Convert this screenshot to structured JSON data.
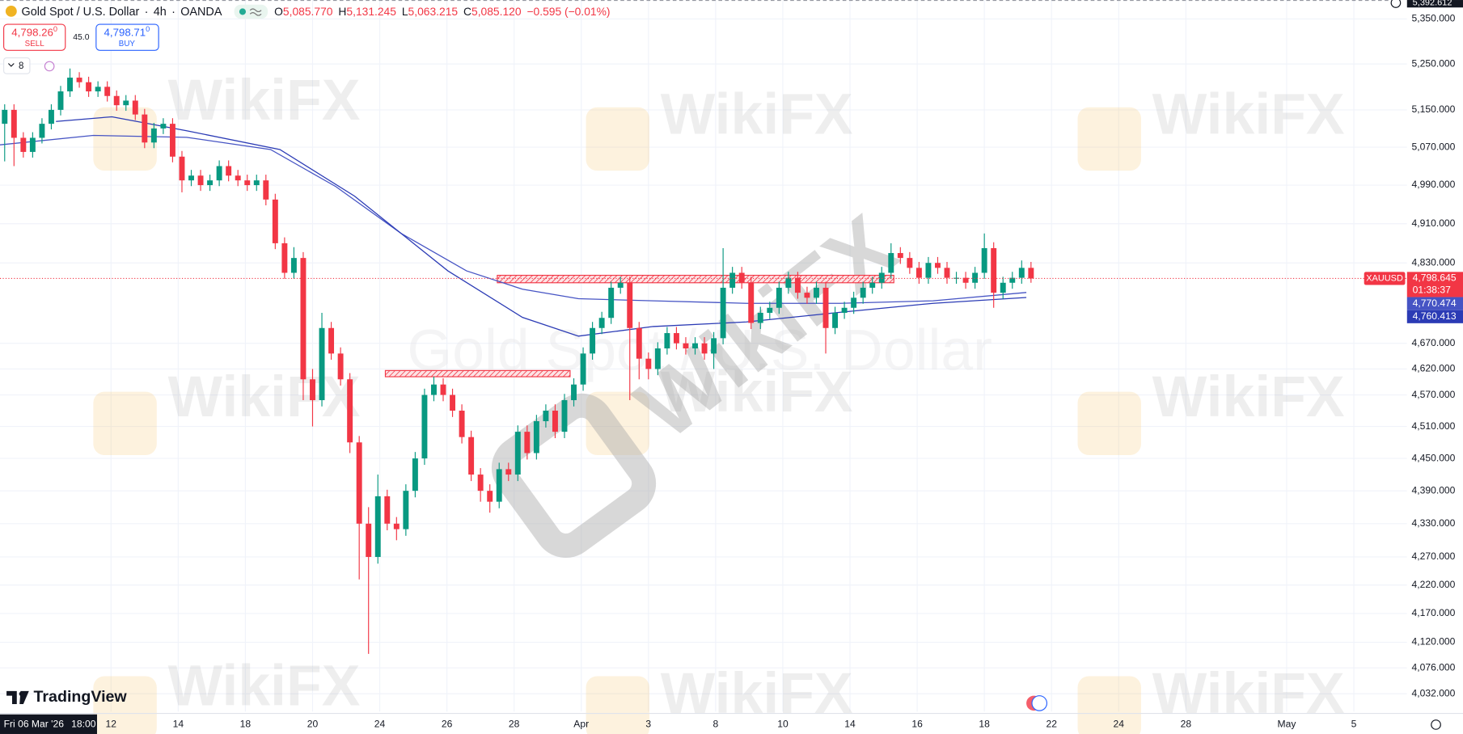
{
  "header": {
    "symbol": "Gold Spot / U.S. Dollar",
    "separator": "·",
    "interval": "4h",
    "exchange": "OANDA",
    "ohlc": [
      {
        "label": "O",
        "value": "5,085.770"
      },
      {
        "label": "H",
        "value": "5,131.245"
      },
      {
        "label": "L",
        "value": "5,063.215"
      },
      {
        "label": "C",
        "value": "5,085.120"
      }
    ],
    "change": "−0.595 (−0.01%)"
  },
  "trade": {
    "sell_price": "4,798.26",
    "sell_price_sup": "0",
    "sell": "SELL",
    "spread": "45.0",
    "buy_price": "4,798.71",
    "buy_price_sup": "0",
    "buy": "BUY"
  },
  "indicators_count": "8",
  "logo": "TradingView",
  "watermark": "WikiFX",
  "crosshair": {
    "date": "Fri 06 Mar '26",
    "time": "18:00",
    "top_price": "5,392.612"
  },
  "chart_data": {
    "type": "candlestick",
    "log_scale": true,
    "grid": true,
    "symbol_label": "XAUUSD",
    "last_value_label": "4,798.645",
    "countdown": "01:38:37",
    "up_color": "#089981",
    "down_color": "#f23645",
    "xlim": [
      -0.5,
      150.3
    ],
    "ylim": [
      4002,
      5392.612
    ],
    "xticks": [
      {
        "value": 11.4,
        "label": "12"
      },
      {
        "value": 18.6,
        "label": "14"
      },
      {
        "value": 25.8,
        "label": "18"
      },
      {
        "value": 33,
        "label": "20"
      },
      {
        "value": 40.2,
        "label": "24"
      },
      {
        "value": 47.4,
        "label": "26"
      },
      {
        "value": 54.6,
        "label": "28"
      },
      {
        "value": 61.8,
        "label": "Apr"
      },
      {
        "value": 69,
        "label": "3"
      },
      {
        "value": 76.2,
        "label": "8"
      },
      {
        "value": 83.4,
        "label": "10"
      },
      {
        "value": 90.6,
        "label": "14"
      },
      {
        "value": 97.8,
        "label": "16"
      },
      {
        "value": 105,
        "label": "18"
      },
      {
        "value": 112.2,
        "label": "22"
      },
      {
        "value": 119.4,
        "label": "24"
      },
      {
        "value": 126.6,
        "label": "28"
      },
      {
        "value": 137.4,
        "label": "May"
      },
      {
        "value": 144.6,
        "label": "5"
      }
    ],
    "yticks": [
      {
        "value": 5350,
        "label": "5,350.000"
      },
      {
        "value": 5250,
        "label": "5,250.000"
      },
      {
        "value": 5150,
        "label": "5,150.000"
      },
      {
        "value": 5070,
        "label": "5,070.000"
      },
      {
        "value": 4990,
        "label": "4,990.000"
      },
      {
        "value": 4910,
        "label": "4,910.000"
      },
      {
        "value": 4830,
        "label": "4,830.000"
      },
      {
        "value": 4670,
        "label": "4,670.000"
      },
      {
        "value": 4620,
        "label": "4,620.000"
      },
      {
        "value": 4570,
        "label": "4,570.000"
      },
      {
        "value": 4510,
        "label": "4,510.000"
      },
      {
        "value": 4450,
        "label": "4,450.000"
      },
      {
        "value": 4390,
        "label": "4,390.000"
      },
      {
        "value": 4330,
        "label": "4,330.000"
      },
      {
        "value": 4270,
        "label": "4,270.000"
      },
      {
        "value": 4220,
        "label": "4,220.000"
      },
      {
        "value": 4170,
        "label": "4,170.000"
      },
      {
        "value": 4120,
        "label": "4,120.000"
      },
      {
        "value": 4076,
        "label": "4,076.000"
      },
      {
        "value": 4032,
        "label": "4,032.000"
      }
    ],
    "open": [
      5120,
      5150,
      5090,
      5060,
      5090,
      5120,
      5150,
      5190,
      5220,
      5210,
      5190,
      5200,
      5180,
      5160,
      5170,
      5140,
      5080,
      5110,
      5120,
      5050,
      5000,
      5010,
      4990,
      5000,
      5030,
      5010,
      5000,
      4990,
      5000,
      4960,
      4870,
      4810,
      4840,
      4600,
      4560,
      4700,
      4650,
      4600,
      4480,
      4330,
      4270,
      4380,
      4330,
      4320,
      4390,
      4450,
      4570,
      4590,
      4570,
      4540,
      4490,
      4420,
      4390,
      4370,
      4430,
      4420,
      4500,
      4460,
      4520,
      4540,
      4500,
      4560,
      4590,
      4650,
      4700,
      4720,
      4780,
      4790,
      4700,
      4640,
      4620,
      4660,
      4690,
      4670,
      4660,
      4670,
      4650,
      4680,
      4780,
      4810,
      4790,
      4710,
      4730,
      4740,
      4780,
      4800,
      4770,
      4760,
      4780,
      4700,
      4730,
      4740,
      4760,
      4780,
      4790,
      4810,
      4850,
      4840,
      4820,
      4800,
      4830,
      4820,
      4800,
      4800,
      4790,
      4810,
      4860,
      4770,
      4790,
      4800,
      4820
    ],
    "high": [
      5162,
      5162,
      5102,
      5102,
      5132,
      5162,
      5202,
      5240,
      5232,
      5222,
      5212,
      5212,
      5192,
      5182,
      5182,
      5152,
      5122,
      5132,
      5132,
      5062,
      5022,
      5022,
      5012,
      5042,
      5042,
      5022,
      5012,
      5012,
      5012,
      4972,
      4882,
      4862,
      4852,
      4620,
      4730,
      4712,
      4662,
      4612,
      4492,
      4360,
      4420,
      4392,
      4342,
      4402,
      4462,
      4582,
      4605,
      4602,
      4582,
      4552,
      4502,
      4432,
      4402,
      4442,
      4442,
      4512,
      4512,
      4532,
      4552,
      4552,
      4572,
      4602,
      4662,
      4712,
      4732,
      4792,
      4802,
      4802,
      4712,
      4652,
      4672,
      4702,
      4702,
      4682,
      4682,
      4682,
      4692,
      4860,
      4822,
      4822,
      4802,
      4742,
      4752,
      4792,
      4812,
      4812,
      4782,
      4792,
      4792,
      4742,
      4752,
      4772,
      4792,
      4802,
      4822,
      4870,
      4862,
      4852,
      4832,
      4842,
      4842,
      4832,
      4812,
      4812,
      4822,
      4890,
      4872,
      4802,
      4812,
      4835,
      4832
    ],
    "low": [
      5040,
      5030,
      5048,
      5048,
      5078,
      5108,
      5138,
      5178,
      5198,
      5178,
      5178,
      5168,
      5148,
      5148,
      5128,
      5068,
      5068,
      5098,
      5038,
      4975,
      4988,
      4978,
      4978,
      4988,
      4998,
      4988,
      4978,
      4978,
      4948,
      4858,
      4798,
      4798,
      4560,
      4510,
      4548,
      4638,
      4588,
      4460,
      4230,
      4100,
      4258,
      4318,
      4300,
      4308,
      4378,
      4438,
      4558,
      4558,
      4528,
      4478,
      4408,
      4370,
      4350,
      4358,
      4408,
      4408,
      4448,
      4448,
      4508,
      4488,
      4488,
      4548,
      4578,
      4638,
      4688,
      4708,
      4768,
      4560,
      4600,
      4600,
      4608,
      4648,
      4658,
      4648,
      4648,
      4638,
      4620,
      4668,
      4768,
      4778,
      4698,
      4698,
      4718,
      4728,
      4768,
      4758,
      4748,
      4748,
      4650,
      4688,
      4718,
      4728,
      4748,
      4768,
      4778,
      4798,
      4828,
      4808,
      4788,
      4788,
      4808,
      4788,
      4788,
      4778,
      4778,
      4798,
      4740,
      4758,
      4778,
      4788,
      4790
    ],
    "close": [
      5150,
      5090,
      5060,
      5090,
      5120,
      5150,
      5190,
      5220,
      5210,
      5190,
      5200,
      5180,
      5160,
      5170,
      5140,
      5080,
      5110,
      5120,
      5050,
      5000,
      5010,
      4990,
      5000,
      5030,
      5010,
      5000,
      4990,
      5000,
      4960,
      4870,
      4810,
      4840,
      4600,
      4560,
      4700,
      4650,
      4600,
      4480,
      4330,
      4270,
      4380,
      4330,
      4320,
      4390,
      4450,
      4570,
      4590,
      4570,
      4540,
      4490,
      4420,
      4390,
      4370,
      4430,
      4420,
      4500,
      4460,
      4520,
      4540,
      4500,
      4560,
      4590,
      4650,
      4700,
      4720,
      4780,
      4790,
      4700,
      4640,
      4620,
      4660,
      4690,
      4670,
      4660,
      4670,
      4650,
      4680,
      4780,
      4810,
      4790,
      4710,
      4730,
      4740,
      4780,
      4800,
      4770,
      4760,
      4780,
      4700,
      4730,
      4740,
      4760,
      4780,
      4790,
      4810,
      4850,
      4840,
      4820,
      4800,
      4830,
      4820,
      4800,
      4800,
      4790,
      4810,
      4860,
      4770,
      4790,
      4800,
      4820,
      4798.645
    ],
    "series": [
      {
        "color": "#4654c4",
        "end_label": "4,770.474",
        "x": [
          -0.5,
          9.5,
          19.5,
          28.5,
          35.5,
          42.5,
          49.5,
          55.5,
          61.5,
          69.5,
          79.5,
          89.5,
          99.5,
          109.5
        ],
        "values": [
          5075,
          5095,
          5091,
          5065,
          4987,
          4890,
          4814,
          4777,
          4758,
          4754,
          4749,
          4749,
          4754,
          4770.474
        ]
      },
      {
        "color": "#2b3bb5",
        "end_label": "4,760.413",
        "x": [
          5.5,
          11.5,
          19.5,
          29.5,
          37.5,
          47.5,
          55.5,
          61.5,
          69.5,
          79.5,
          89.5,
          99.5,
          109.5
        ],
        "values": [
          5125,
          5135,
          5105,
          5065,
          4967,
          4814,
          4721,
          4684,
          4703,
          4712,
          4731,
          4749,
          4760.413
        ]
      }
    ],
    "zones": [
      {
        "x": [
          52.8,
          95.3
        ],
        "y": [
          4790,
          4805
        ],
        "color": "#f23645"
      },
      {
        "x": [
          40.8,
          60.6
        ],
        "y": [
          4605,
          4617
        ],
        "color": "#f23645"
      }
    ]
  }
}
